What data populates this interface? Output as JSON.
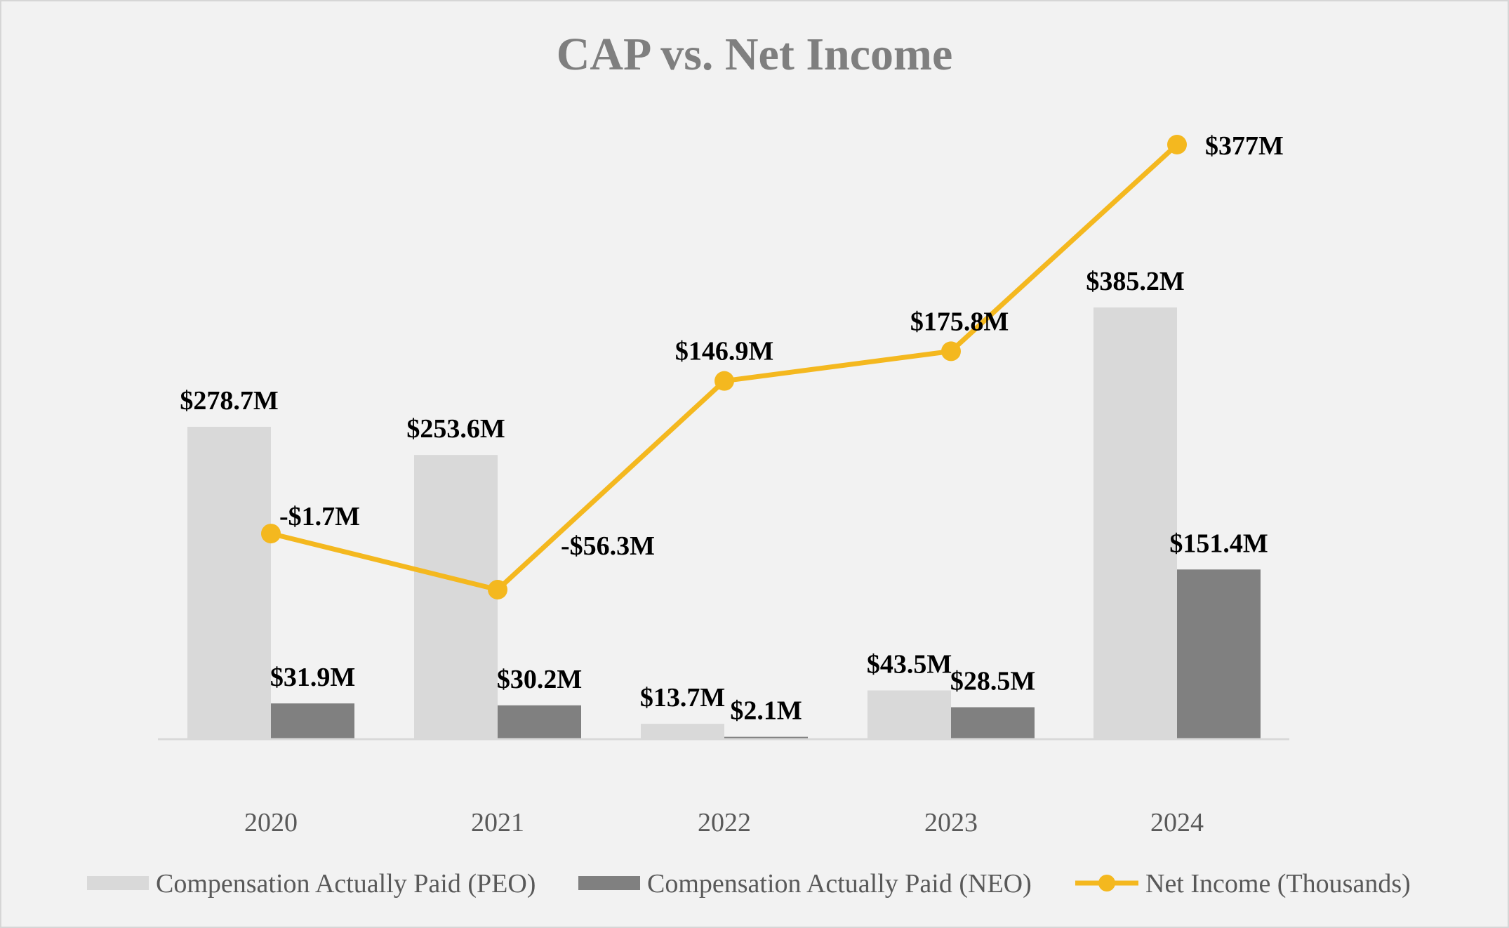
{
  "chart_data": {
    "type": "bar",
    "title": "CAP vs. Net Income",
    "categories": [
      "2020",
      "2021",
      "2022",
      "2023",
      "2024"
    ],
    "series": [
      {
        "name": "Compensation Actually Paid (PEO)",
        "kind": "bar",
        "color": "#d9d9d9",
        "values": [
          278.7,
          253.6,
          13.7,
          43.5,
          385.2
        ],
        "labels": [
          "$278.7M",
          "$253.6M",
          "$13.7M",
          "$43.5M",
          "$385.2M"
        ]
      },
      {
        "name": "Compensation Actually Paid (NEO)",
        "kind": "bar",
        "color": "#808080",
        "values": [
          31.9,
          30.2,
          2.1,
          28.5,
          151.4
        ],
        "labels": [
          "$31.9M",
          "$30.2M",
          "$2.1M",
          "$28.5M",
          "$151.4M"
        ]
      },
      {
        "name": "Net Income (Thousands)",
        "kind": "line",
        "color": "#f4b81f",
        "values": [
          -1.7,
          -56.3,
          146.9,
          175.8,
          377
        ],
        "labels": [
          "-$1.7M",
          "-$56.3M",
          "$146.9M",
          "$175.8M",
          "$377M"
        ]
      }
    ],
    "bar_axis_range": [
      0,
      385.2
    ],
    "line_axis_range": [
      -56.3,
      377
    ],
    "gridlines": false,
    "legend_position": "bottom"
  },
  "colors": {
    "background": "#f2f2f2",
    "border": "#d6d6d6",
    "baseline": "#d9d9d9",
    "title": "#7f7f7f",
    "tick_label": "#595959",
    "data_label": "#000000"
  }
}
